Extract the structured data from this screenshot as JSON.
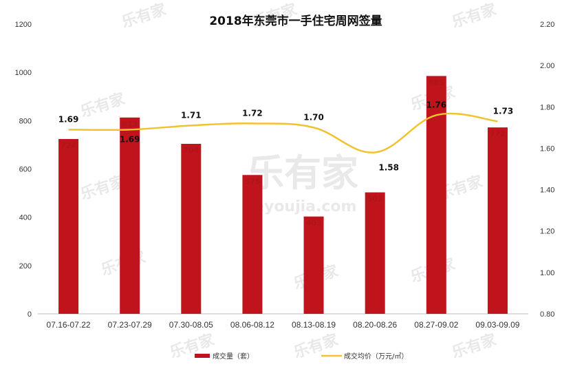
{
  "chart_data": {
    "type": "bar",
    "title": "2018年东莞市一手住宅周网签量",
    "categories": [
      "07.16-07.22",
      "07.23-07.29",
      "07.30-08.05",
      "08.06-08.12",
      "08.13-08.19",
      "08.20-08.26",
      "08.27-09.02",
      "09.03-09.09"
    ],
    "series": [
      {
        "name": "成交量（套）",
        "type": "bar",
        "axis": "left",
        "color": "#c0141c",
        "values": [
          724,
          813,
          704,
          575,
          403,
          503,
          985,
          772
        ]
      },
      {
        "name": "成交均价（万元/㎡）",
        "type": "line",
        "axis": "right",
        "color": "#f2c12e",
        "values": [
          1.69,
          1.69,
          1.71,
          1.72,
          1.7,
          1.58,
          1.76,
          1.73
        ]
      }
    ],
    "bar_labels": [
      "724",
      "813",
      "704",
      "575",
      "403",
      "503",
      "985",
      "772"
    ],
    "line_labels": [
      "1.69",
      "1.69",
      "1.71",
      "1.72",
      "1.70",
      "1.58",
      "1.76",
      "1.73"
    ],
    "y_left": {
      "min": 0,
      "max": 1200,
      "ticks": [
        "0",
        "200",
        "400",
        "600",
        "800",
        "1000",
        "1200"
      ]
    },
    "y_right": {
      "min": 0.8,
      "max": 2.2,
      "ticks": [
        "0.80",
        "1.00",
        "1.20",
        "1.40",
        "1.60",
        "1.80",
        "2.00",
        "2.20"
      ]
    },
    "legend_position": "bottom",
    "grid": false
  },
  "watermark": {
    "brand": "乐有家",
    "site": "leyoujia.com"
  }
}
